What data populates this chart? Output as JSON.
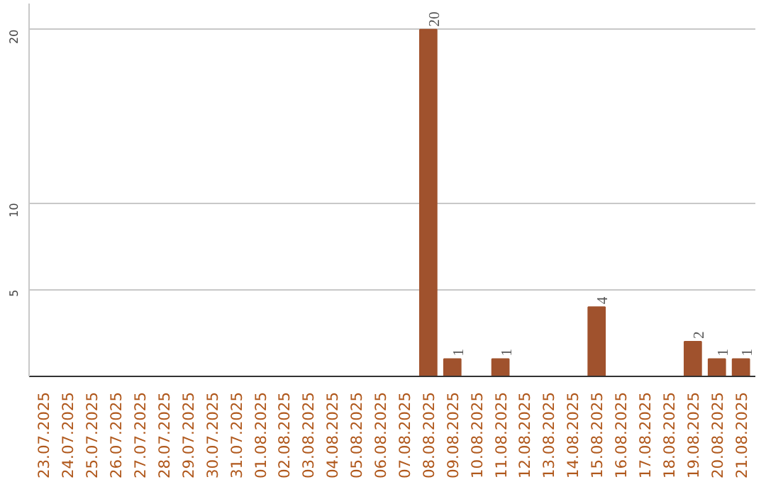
{
  "chart_data": {
    "type": "bar",
    "categories": [
      "23.07.2025",
      "24.07.2025",
      "25.07.2025",
      "26.07.2025",
      "27.07.2025",
      "28.07.2025",
      "29.07.2025",
      "30.07.2025",
      "31.07.2025",
      "01.08.2025",
      "02.08.2025",
      "03.08.2025",
      "04.08.2025",
      "05.08.2025",
      "06.08.2025",
      "07.08.2025",
      "08.08.2025",
      "09.08.2025",
      "10.08.2025",
      "11.08.2025",
      "12.08.2025",
      "13.08.2025",
      "14.08.2025",
      "15.08.2025",
      "16.08.2025",
      "17.08.2025",
      "18.08.2025",
      "19.08.2025",
      "20.08.2025",
      "21.08.2025"
    ],
    "values": [
      0,
      0,
      0,
      0,
      0,
      0,
      0,
      0,
      0,
      0,
      0,
      0,
      0,
      0,
      0,
      0,
      20,
      1,
      0,
      1,
      0,
      0,
      0,
      4,
      0,
      0,
      0,
      2,
      1,
      1
    ],
    "value_labels": [
      null,
      null,
      null,
      null,
      null,
      null,
      null,
      null,
      null,
      null,
      null,
      null,
      null,
      null,
      null,
      null,
      "20",
      "1",
      null,
      "1",
      null,
      null,
      null,
      "4",
      null,
      null,
      null,
      "2",
      "1",
      "1"
    ],
    "color": "#a0522d",
    "ylim": [
      0,
      21.5
    ],
    "yticks": [
      5,
      10,
      20
    ],
    "grid": "y"
  }
}
